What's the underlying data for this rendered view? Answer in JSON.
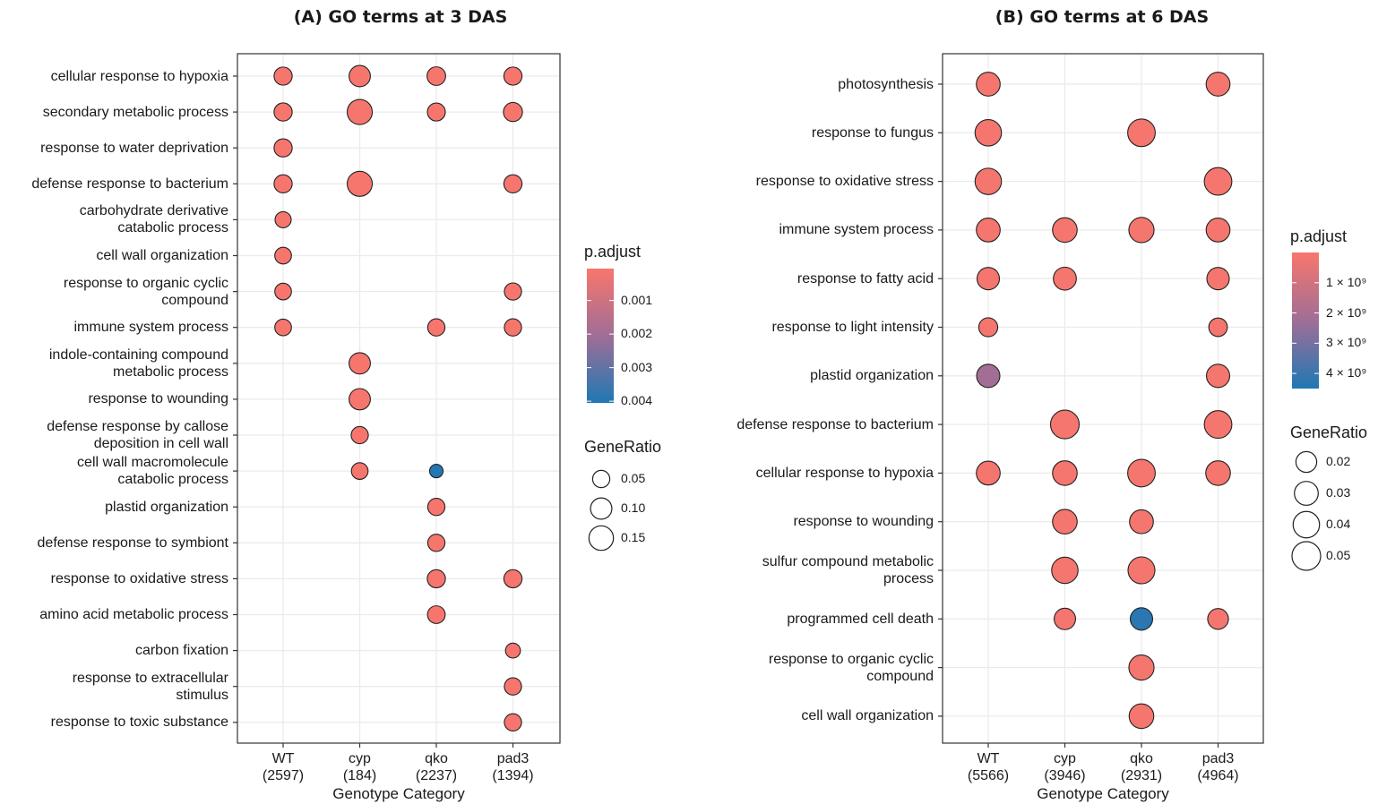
{
  "chart_data": [
    {
      "type": "scatter",
      "title": "(A) GO terms at 3 DAS",
      "xlabel": "Genotype Category",
      "x_categories": [
        "WT",
        "cyp",
        "qko",
        "pad3"
      ],
      "x_counts": [
        "(2597)",
        "(184)",
        "(2237)",
        "(1394)"
      ],
      "y_categories": [
        "cellular response to hypoxia",
        "secondary metabolic process",
        "response to water deprivation",
        "defense response to bacterium",
        "carbohydrate derivative\ncatabolic process",
        "cell wall organization",
        "response to organic cyclic\ncompound",
        "immune system process",
        "indole-containing compound\nmetabolic process",
        "response to wounding",
        "defense response by callose\ndeposition in cell wall",
        "cell wall macromolecule\ncatabolic process",
        "plastid organization",
        "defense response to symbiont",
        "response to oxidative stress",
        "amino acid metabolic process",
        "carbon fixation",
        "response to extracellular\nstimulus",
        "response to toxic substance"
      ],
      "points": [
        {
          "x": "WT",
          "y": "cellular response to hypoxia",
          "gene_ratio": 0.06,
          "p_adjust": 0.0001
        },
        {
          "x": "cyp",
          "y": "cellular response to hypoxia",
          "gene_ratio": 0.1,
          "p_adjust": 0.0001
        },
        {
          "x": "qko",
          "y": "cellular response to hypoxia",
          "gene_ratio": 0.065,
          "p_adjust": 0.0001
        },
        {
          "x": "pad3",
          "y": "cellular response to hypoxia",
          "gene_ratio": 0.06,
          "p_adjust": 0.0001
        },
        {
          "x": "WT",
          "y": "secondary metabolic process",
          "gene_ratio": 0.06,
          "p_adjust": 0.0001
        },
        {
          "x": "cyp",
          "y": "secondary metabolic process",
          "gene_ratio": 0.16,
          "p_adjust": 0.0001
        },
        {
          "x": "qko",
          "y": "secondary metabolic process",
          "gene_ratio": 0.058,
          "p_adjust": 0.0001
        },
        {
          "x": "pad3",
          "y": "secondary metabolic process",
          "gene_ratio": 0.07,
          "p_adjust": 0.0001
        },
        {
          "x": "WT",
          "y": "response to water deprivation",
          "gene_ratio": 0.06,
          "p_adjust": 0.0001
        },
        {
          "x": "WT",
          "y": "defense response to bacterium",
          "gene_ratio": 0.06,
          "p_adjust": 0.0001
        },
        {
          "x": "cyp",
          "y": "defense response to bacterium",
          "gene_ratio": 0.16,
          "p_adjust": 0.0001
        },
        {
          "x": "pad3",
          "y": "defense response to bacterium",
          "gene_ratio": 0.06,
          "p_adjust": 0.0001
        },
        {
          "x": "WT",
          "y": "carbohydrate derivative\ncatabolic process",
          "gene_ratio": 0.04,
          "p_adjust": 0.0001
        },
        {
          "x": "WT",
          "y": "cell wall organization",
          "gene_ratio": 0.045,
          "p_adjust": 0.0001
        },
        {
          "x": "WT",
          "y": "response to organic cyclic\ncompound",
          "gene_ratio": 0.045,
          "p_adjust": 0.0001
        },
        {
          "x": "pad3",
          "y": "response to organic cyclic\ncompound",
          "gene_ratio": 0.05,
          "p_adjust": 0.0001
        },
        {
          "x": "WT",
          "y": "immune system process",
          "gene_ratio": 0.045,
          "p_adjust": 0.0001
        },
        {
          "x": "qko",
          "y": "immune system process",
          "gene_ratio": 0.05,
          "p_adjust": 0.0001
        },
        {
          "x": "pad3",
          "y": "immune system process",
          "gene_ratio": 0.05,
          "p_adjust": 0.0001
        },
        {
          "x": "cyp",
          "y": "indole-containing compound\nmetabolic process",
          "gene_ratio": 0.1,
          "p_adjust": 0.0001
        },
        {
          "x": "cyp",
          "y": "response to wounding",
          "gene_ratio": 0.1,
          "p_adjust": 0.0001
        },
        {
          "x": "cyp",
          "y": "defense response by callose\ndeposition in cell wall",
          "gene_ratio": 0.05,
          "p_adjust": 0.0001
        },
        {
          "x": "cyp",
          "y": "cell wall macromolecule\ncatabolic process",
          "gene_ratio": 0.045,
          "p_adjust": 0.0001
        },
        {
          "x": "qko",
          "y": "cell wall macromolecule\ncatabolic process",
          "gene_ratio": 0.02,
          "p_adjust": 0.004
        },
        {
          "x": "qko",
          "y": "plastid organization",
          "gene_ratio": 0.05,
          "p_adjust": 0.0001
        },
        {
          "x": "qko",
          "y": "defense response to symbiont",
          "gene_ratio": 0.05,
          "p_adjust": 0.0001
        },
        {
          "x": "qko",
          "y": "response to oxidative stress",
          "gene_ratio": 0.06,
          "p_adjust": 0.0001
        },
        {
          "x": "pad3",
          "y": "response to oxidative stress",
          "gene_ratio": 0.06,
          "p_adjust": 0.0001
        },
        {
          "x": "qko",
          "y": "amino acid metabolic process",
          "gene_ratio": 0.055,
          "p_adjust": 0.0001
        },
        {
          "x": "pad3",
          "y": "carbon fixation",
          "gene_ratio": 0.03,
          "p_adjust": 0.0001
        },
        {
          "x": "pad3",
          "y": "response to extracellular\nstimulus",
          "gene_ratio": 0.05,
          "p_adjust": 0.0001
        },
        {
          "x": "pad3",
          "y": "response to toxic substance",
          "gene_ratio": 0.05,
          "p_adjust": 0.0001
        }
      ],
      "legend": {
        "color_title": "p.adjust",
        "color_ticks": [
          "0.001",
          "0.002",
          "0.003",
          "0.004"
        ],
        "color_tick_values": [
          0.001,
          0.002,
          0.003,
          0.004
        ],
        "color_range": [
          5e-05,
          0.00405
        ],
        "size_title": "GeneRatio",
        "size_labels": [
          "0.05",
          "0.10",
          "0.15"
        ],
        "size_values": [
          0.05,
          0.1,
          0.15
        ]
      },
      "grid": true,
      "colors": {
        "low_p": "#f8766d",
        "high_p": "#1f78b4"
      }
    },
    {
      "type": "scatter",
      "title": "(B) GO terms at 6 DAS",
      "xlabel": "Genotype Category",
      "x_categories": [
        "WT",
        "cyp",
        "qko",
        "pad3"
      ],
      "x_counts": [
        "(5566)",
        "(3946)",
        "(2931)",
        "(4964)"
      ],
      "y_categories": [
        "photosynthesis",
        "response to fungus",
        "response to oxidative stress",
        "immune system process",
        "response to fatty acid",
        "response to light intensity",
        "plastid organization",
        "defense response to bacterium",
        "cellular response to hypoxia",
        "response to wounding",
        "sulfur compound metabolic\nprocess",
        "programmed cell death",
        "response to organic cyclic\ncompound",
        "cell wall organization"
      ],
      "points": [
        {
          "x": "WT",
          "y": "photosynthesis",
          "gene_ratio": 0.03,
          "p_adjust": 1e-10
        },
        {
          "x": "pad3",
          "y": "photosynthesis",
          "gene_ratio": 0.03,
          "p_adjust": 1e-10
        },
        {
          "x": "WT",
          "y": "response to fungus",
          "gene_ratio": 0.04,
          "p_adjust": 1e-10
        },
        {
          "x": "qko",
          "y": "response to fungus",
          "gene_ratio": 0.045,
          "p_adjust": 1e-10
        },
        {
          "x": "WT",
          "y": "response to oxidative stress",
          "gene_ratio": 0.04,
          "p_adjust": 1e-10
        },
        {
          "x": "pad3",
          "y": "response to oxidative stress",
          "gene_ratio": 0.045,
          "p_adjust": 1e-10
        },
        {
          "x": "WT",
          "y": "immune system process",
          "gene_ratio": 0.03,
          "p_adjust": 1e-10
        },
        {
          "x": "cyp",
          "y": "immune system process",
          "gene_ratio": 0.033,
          "p_adjust": 1e-10
        },
        {
          "x": "qko",
          "y": "immune system process",
          "gene_ratio": 0.035,
          "p_adjust": 1e-10
        },
        {
          "x": "pad3",
          "y": "immune system process",
          "gene_ratio": 0.03,
          "p_adjust": 1e-10
        },
        {
          "x": "WT",
          "y": "response to fatty acid",
          "gene_ratio": 0.025,
          "p_adjust": 1e-10
        },
        {
          "x": "cyp",
          "y": "response to fatty acid",
          "gene_ratio": 0.027,
          "p_adjust": 1e-10
        },
        {
          "x": "pad3",
          "y": "response to fatty acid",
          "gene_ratio": 0.025,
          "p_adjust": 1e-10
        },
        {
          "x": "WT",
          "y": "response to light intensity",
          "gene_ratio": 0.015,
          "p_adjust": 1e-10
        },
        {
          "x": "pad3",
          "y": "response to light intensity",
          "gene_ratio": 0.014,
          "p_adjust": 1e-10
        },
        {
          "x": "WT",
          "y": "plastid organization",
          "gene_ratio": 0.028,
          "p_adjust": 2.2e-09
        },
        {
          "x": "pad3",
          "y": "plastid organization",
          "gene_ratio": 0.028,
          "p_adjust": 1e-10
        },
        {
          "x": "cyp",
          "y": "defense response to bacterium",
          "gene_ratio": 0.05,
          "p_adjust": 1e-10
        },
        {
          "x": "pad3",
          "y": "defense response to bacterium",
          "gene_ratio": 0.045,
          "p_adjust": 1e-10
        },
        {
          "x": "WT",
          "y": "cellular response to hypoxia",
          "gene_ratio": 0.03,
          "p_adjust": 1e-10
        },
        {
          "x": "cyp",
          "y": "cellular response to hypoxia",
          "gene_ratio": 0.033,
          "p_adjust": 1e-10
        },
        {
          "x": "qko",
          "y": "cellular response to hypoxia",
          "gene_ratio": 0.045,
          "p_adjust": 1e-10
        },
        {
          "x": "pad3",
          "y": "cellular response to hypoxia",
          "gene_ratio": 0.033,
          "p_adjust": 1e-10
        },
        {
          "x": "cyp",
          "y": "response to wounding",
          "gene_ratio": 0.033,
          "p_adjust": 1e-10
        },
        {
          "x": "qko",
          "y": "response to wounding",
          "gene_ratio": 0.03,
          "p_adjust": 1e-10
        },
        {
          "x": "cyp",
          "y": "sulfur compound metabolic\nprocess",
          "gene_ratio": 0.04,
          "p_adjust": 1e-10
        },
        {
          "x": "qko",
          "y": "sulfur compound metabolic\nprocess",
          "gene_ratio": 0.042,
          "p_adjust": 1e-10
        },
        {
          "x": "cyp",
          "y": "programmed cell death",
          "gene_ratio": 0.022,
          "p_adjust": 1e-10
        },
        {
          "x": "qko",
          "y": "programmed cell death",
          "gene_ratio": 0.025,
          "p_adjust": 4.3e-09
        },
        {
          "x": "pad3",
          "y": "programmed cell death",
          "gene_ratio": 0.02,
          "p_adjust": 1e-10
        },
        {
          "x": "qko",
          "y": "response to organic cyclic\ncompound",
          "gene_ratio": 0.035,
          "p_adjust": 1e-10
        },
        {
          "x": "qko",
          "y": "cell wall organization",
          "gene_ratio": 0.033,
          "p_adjust": 1e-10
        }
      ],
      "legend": {
        "color_title": "p.adjust",
        "color_ticks": [
          "1 × 10⁹",
          "2 × 10⁹",
          "3 × 10⁹",
          "4 × 10⁹"
        ],
        "color_tick_values": [
          1e-09,
          2e-09,
          3e-09,
          4e-09
        ],
        "color_range": [
          0,
          4.5e-09
        ],
        "size_title": "GeneRatio",
        "size_labels": [
          "0.02",
          "0.03",
          "0.04",
          "0.05"
        ],
        "size_values": [
          0.02,
          0.03,
          0.04,
          0.05
        ]
      },
      "grid": true,
      "colors": {
        "low_p": "#f8766d",
        "high_p": "#1f78b4"
      }
    }
  ]
}
